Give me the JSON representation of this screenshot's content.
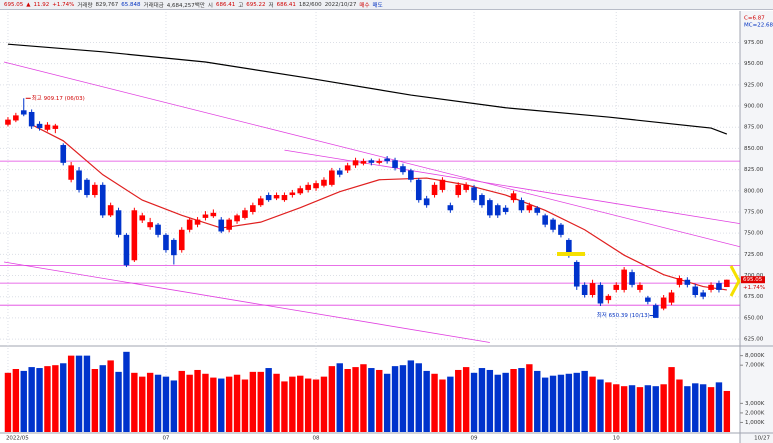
{
  "header": {
    "items": [
      {
        "text": "695.05",
        "color": "#d00000"
      },
      {
        "text": "▲",
        "color": "#d00000"
      },
      {
        "text": "11.92",
        "color": "#d00000"
      },
      {
        "text": "+1.74%",
        "color": "#d00000"
      },
      {
        "text": "거래량",
        "color": "#333333"
      },
      {
        "text": "829,767",
        "color": "#333333"
      },
      {
        "text": "65.848",
        "color": "#0030c0"
      },
      {
        "text": "거래대금",
        "color": "#333333"
      },
      {
        "text": "4,684,257백만",
        "color": "#333333"
      },
      {
        "text": "시",
        "color": "#333333"
      },
      {
        "text": "686.41",
        "color": "#d00000"
      },
      {
        "text": "고",
        "color": "#333333"
      },
      {
        "text": "695.22",
        "color": "#d00000"
      },
      {
        "text": "저",
        "color": "#333333"
      },
      {
        "text": "686.41",
        "color": "#d00000"
      },
      {
        "text": "182/600",
        "color": "#333333"
      },
      {
        "text": "2022/10/27",
        "color": "#333333"
      },
      {
        "text": "매수",
        "color": "#d00000"
      },
      {
        "text": "매도",
        "color": "#0030c0"
      }
    ]
  },
  "chart_data": {
    "type": "candlestick",
    "indicator_labels": [
      {
        "text": "C=6.87",
        "color": "#d00000"
      },
      {
        "text": "MC=22.68",
        "color": "#0030c0"
      }
    ],
    "categories": [
      "2022/05",
      null,
      null,
      null,
      null,
      null,
      null,
      null,
      null,
      null,
      null,
      null,
      null,
      null,
      null,
      null,
      null,
      null,
      null,
      null,
      "07",
      null,
      null,
      null,
      null,
      null,
      null,
      null,
      null,
      null,
      null,
      null,
      null,
      null,
      null,
      null,
      null,
      null,
      null,
      "08",
      null,
      null,
      null,
      null,
      null,
      null,
      null,
      null,
      null,
      null,
      null,
      null,
      null,
      null,
      null,
      null,
      null,
      null,
      null,
      "09",
      null,
      null,
      null,
      null,
      null,
      null,
      null,
      null,
      null,
      null,
      null,
      null,
      null,
      null,
      null,
      null,
      null,
      "10",
      null,
      null,
      null,
      null,
      null,
      null,
      null,
      null,
      null,
      null,
      null,
      null,
      null,
      null
    ],
    "x_end_label": "10/27",
    "ylim": [
      618,
      1011
    ],
    "yticks": [
      {
        "value": 625,
        "label": "625.00"
      },
      {
        "value": 650,
        "label": "650.00"
      },
      {
        "value": 675,
        "label": "675.00"
      },
      {
        "value": 700,
        "label": "700.00"
      },
      {
        "value": 725,
        "label": "725.00"
      },
      {
        "value": 750,
        "label": "750.00"
      },
      {
        "value": 775,
        "label": "775.00"
      },
      {
        "value": 800,
        "label": "800.00"
      },
      {
        "value": 825,
        "label": "825.00"
      },
      {
        "value": 850,
        "label": "850.00"
      },
      {
        "value": 875,
        "label": "875.00"
      },
      {
        "value": 900,
        "label": "900.00"
      },
      {
        "value": 925,
        "label": "925.00"
      },
      {
        "value": 950,
        "label": "950.00"
      },
      {
        "value": 975,
        "label": "975.00"
      }
    ],
    "grid": true,
    "candles": {
      "up_color": "#ff0000",
      "down_color": "#0033cc",
      "open": [
        878,
        883,
        895,
        893,
        879,
        872,
        873,
        854,
        813,
        824,
        813,
        795,
        807,
        771,
        777,
        748,
        718,
        765,
        757,
        760,
        748,
        742,
        730,
        754,
        760,
        768,
        770,
        766,
        754,
        764,
        768,
        775,
        783,
        795,
        791,
        789,
        795,
        797,
        801,
        803,
        806,
        807,
        824,
        824,
        830,
        832,
        836,
        833,
        838,
        836,
        829,
        824,
        813,
        791,
        795,
        801,
        783,
        795,
        801,
        804,
        795,
        789,
        783,
        780,
        789,
        789,
        777,
        780,
        771,
        766,
        760,
        742,
        716,
        689,
        677,
        689,
        671,
        683,
        683,
        704,
        683,
        674,
        665,
        661,
        668,
        689,
        695,
        687,
        680,
        683,
        691,
        686.41
      ],
      "high": [
        887,
        892,
        909.17,
        896,
        882,
        881,
        879,
        856,
        834,
        828,
        815,
        810,
        810,
        786,
        780,
        750,
        780,
        774,
        768,
        762,
        750,
        744,
        757,
        768,
        769,
        776,
        778,
        769,
        768,
        773,
        780,
        786,
        794,
        798,
        798,
        798,
        801,
        806,
        810,
        812,
        816,
        827,
        827,
        833,
        839,
        838,
        838,
        838,
        841,
        839,
        832,
        826,
        815,
        794,
        810,
        816,
        786,
        810,
        810,
        807,
        797,
        791,
        785,
        783,
        800,
        792,
        786,
        782,
        773,
        768,
        762,
        744,
        718,
        692,
        695,
        692,
        678,
        692,
        710,
        707,
        692,
        676,
        667,
        677,
        683,
        700,
        698,
        690,
        683,
        692,
        694,
        695.22
      ],
      "low": [
        876,
        881,
        888,
        873,
        871,
        870,
        868,
        830,
        810,
        798,
        792,
        792,
        768,
        769,
        745,
        710,
        716,
        762,
        754,
        745,
        727,
        713,
        727,
        751,
        757,
        765,
        768,
        750,
        751,
        761,
        766,
        772,
        781,
        787,
        789,
        787,
        792,
        795,
        798,
        800,
        804,
        805,
        816,
        821,
        827,
        830,
        830,
        831,
        832,
        824,
        819,
        810,
        786,
        780,
        792,
        798,
        774,
        792,
        798,
        786,
        780,
        768,
        768,
        772,
        786,
        774,
        774,
        771,
        757,
        751,
        745,
        721,
        683,
        674,
        674,
        664,
        667,
        680,
        680,
        686,
        680,
        666,
        650.39,
        659,
        665,
        686,
        686,
        674,
        672,
        680,
        680,
        686.41
      ],
      "close": [
        884,
        889,
        890,
        876,
        874,
        878,
        877,
        833,
        830,
        801,
        795,
        807,
        771,
        783,
        748,
        712,
        777,
        771,
        763,
        748,
        730,
        724,
        754,
        766,
        766,
        772,
        774,
        752,
        766,
        771,
        777,
        783,
        791,
        789,
        795,
        795,
        798,
        803,
        807,
        809,
        813,
        824,
        819,
        830,
        836,
        835,
        833,
        835,
        835,
        827,
        822,
        813,
        789,
        783,
        807,
        813,
        777,
        807,
        807,
        789,
        783,
        771,
        771,
        775,
        797,
        777,
        783,
        774,
        760,
        754,
        748,
        724,
        687,
        677,
        691,
        667,
        676,
        689,
        707,
        689,
        689,
        669,
        650,
        674,
        680,
        697,
        689,
        677,
        675,
        689,
        683,
        695.05
      ]
    },
    "lines": [
      {
        "color": "#000000",
        "x": [
          0,
          12,
          25,
          38,
          51,
          63,
          76,
          89,
          91
        ],
        "values": [
          973,
          964,
          952,
          933,
          913,
          898,
          887,
          874,
          867
        ]
      },
      {
        "color": "#e02020",
        "x": [
          3,
          7,
          12,
          17,
          22,
          27,
          32,
          37,
          42,
          47,
          53,
          58,
          63,
          68,
          73,
          78,
          83,
          88,
          91
        ],
        "values": [
          878,
          859,
          819,
          789,
          771,
          756,
          763,
          780,
          799,
          813,
          815,
          807,
          795,
          777,
          754,
          724,
          701,
          687,
          683
        ]
      },
      {
        "color": "#e040e0",
        "x": [
          -0.5,
          93.5
        ],
        "values": [
          952,
          732
        ]
      },
      {
        "color": "#e040e0",
        "x": [
          35,
          93.5
        ],
        "values": [
          848,
          760
        ]
      },
      {
        "color": "#e040e0",
        "x": [
          -0.5,
          61
        ],
        "values": [
          716,
          621
        ]
      }
    ],
    "hlines": {
      "color": "#e040e0",
      "values": [
        835,
        712,
        691,
        665
      ]
    },
    "annotations": [
      {
        "text": "최고 909.17 (06/03)",
        "value": 909.17,
        "color": "#d00000"
      },
      {
        "text": "최저 650.39 (10/13)",
        "value": 650.39,
        "color": "#0030c0"
      }
    ],
    "price_change_label": "+1.74%",
    "volume": {
      "values": [
        6200,
        6600,
        6400,
        6800,
        6700,
        6900,
        7000,
        7200,
        8000,
        8000,
        8000,
        6600,
        7000,
        7500,
        6300,
        8400,
        6200,
        5800,
        6200,
        6000,
        5800,
        5400,
        6400,
        6000,
        6500,
        6100,
        5700,
        5600,
        5800,
        6000,
        5500,
        6300,
        6300,
        6700,
        6100,
        5300,
        5800,
        5900,
        5600,
        5500,
        5800,
        6900,
        7200,
        6600,
        6800,
        7100,
        6700,
        6500,
        6100,
        6900,
        7000,
        7500,
        7200,
        6400,
        6100,
        5500,
        5800,
        6500,
        6800,
        6200,
        6700,
        6500,
        6000,
        6200,
        6600,
        6700,
        7100,
        6400,
        5700,
        5900,
        6000,
        6100,
        6200,
        6400,
        5800,
        5500,
        5200,
        5000,
        4800,
        4900,
        4700,
        4900,
        4800,
        5000,
        6800,
        5500,
        4800,
        5100,
        5000,
        4700,
        5200,
        4300
      ],
      "vlim": [
        0,
        8800
      ],
      "ticks": [
        {
          "value": 1000,
          "label": "1,000K"
        },
        {
          "value": 2000,
          "label": "2,000K"
        },
        {
          "value": 3000,
          "label": "3,000K"
        },
        {
          "value": 7000,
          "label": "7,000K"
        },
        {
          "value": 8000,
          "label": "8,000K"
        }
      ]
    }
  }
}
